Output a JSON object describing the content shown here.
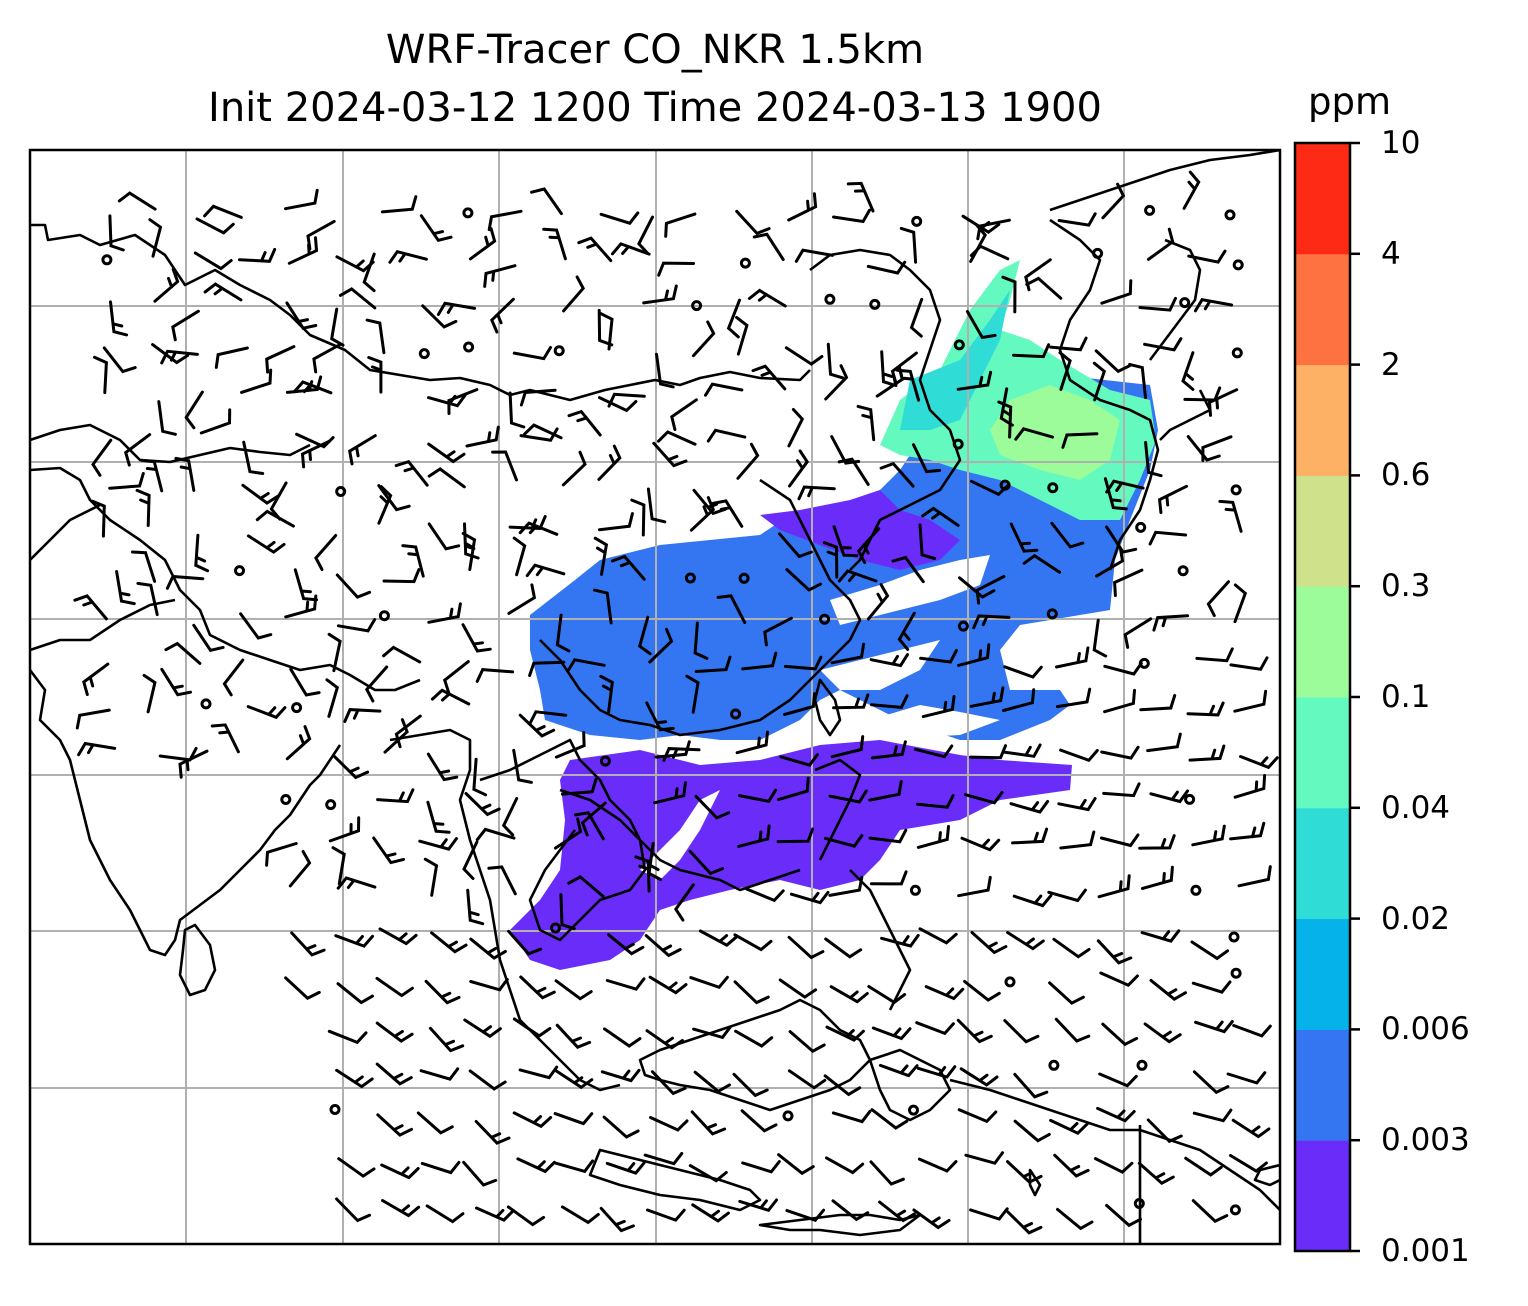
{
  "title": {
    "line1": "WRF-Tracer CO_NKR 1.5km",
    "line2": "Init 2024-03-12 1200 Time 2024-03-13 1900"
  },
  "colorbar": {
    "unit": "ppm",
    "ticks": [
      "0.001",
      "0.003",
      "0.006",
      "0.02",
      "0.04",
      "0.1",
      "0.3",
      "0.6",
      "2",
      "4",
      "10"
    ],
    "colors": [
      "#6a2cf8",
      "#3475f2",
      "#06b2ea",
      "#2fdcd6",
      "#63f9bf",
      "#9cfc9a",
      "#cfe18a",
      "#fdb164",
      "#fe7140",
      "#fe2a16"
    ]
  },
  "chart_data": {
    "type": "heatmap",
    "title": "WRF-Tracer CO_NKR 1.5km Init 2024-03-12 1200 Time 2024-03-13 1900",
    "variable": "CO_NKR tracer concentration with wind barbs, 1.5km",
    "units": "ppm",
    "levels": [
      0.001,
      0.003,
      0.006,
      0.02,
      0.04,
      0.1,
      0.3,
      0.6,
      2,
      4,
      10
    ],
    "grid": true,
    "coastlines": true,
    "wind_barbs": true
  }
}
